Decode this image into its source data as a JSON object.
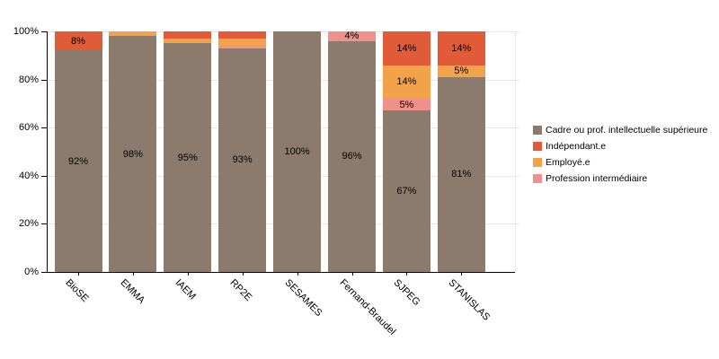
{
  "chart_data": {
    "type": "bar",
    "stacked": true,
    "orientation": "vertical",
    "title": "",
    "xlabel": "",
    "ylabel": "",
    "categories": [
      "BioSE",
      "EMMA",
      "IAEM",
      "RP2E",
      "SESAMES",
      "Fernand-Braudel",
      "SJPEG",
      "STANISLAS"
    ],
    "series": [
      {
        "name": "Cadre ou prof. intellectuelle supérieure",
        "color": "#8C7B6D",
        "values": [
          92,
          98,
          95,
          93,
          100,
          96,
          67,
          81
        ]
      },
      {
        "name": "Profession intermédiaire",
        "color": "#F0908A",
        "values": [
          0,
          0,
          0,
          1,
          0,
          4,
          5,
          0
        ]
      },
      {
        "name": "Employé.e",
        "color": "#F2A349",
        "values": [
          0,
          2,
          2,
          3,
          0,
          0,
          14,
          5
        ]
      },
      {
        "name": "Indépendant.e",
        "color": "#E25B38",
        "values": [
          8,
          0,
          3,
          3,
          0,
          0,
          14,
          14
        ]
      }
    ],
    "value_suffix": "%",
    "label_min_value": 4,
    "y_axis": {
      "tick_labels": [
        "0%",
        "20%",
        "40%",
        "60%",
        "80%",
        "100%"
      ],
      "tick_values": [
        0,
        20,
        40,
        60,
        80,
        100
      ],
      "range": [
        0,
        100
      ]
    },
    "grid": {
      "horizontal": true,
      "right_edge_line": true,
      "color": "#e9e6e3"
    },
    "legend": {
      "position": "right",
      "entries": [
        {
          "label": "Cadre ou prof. intellectuelle supérieure",
          "color": "#8C7B6D"
        },
        {
          "label": "Indépendant.e",
          "color": "#E25B38"
        },
        {
          "label": "Employé.e",
          "color": "#F2A349"
        },
        {
          "label": "Profession intermédiaire",
          "color": "#F0908A"
        }
      ]
    }
  }
}
